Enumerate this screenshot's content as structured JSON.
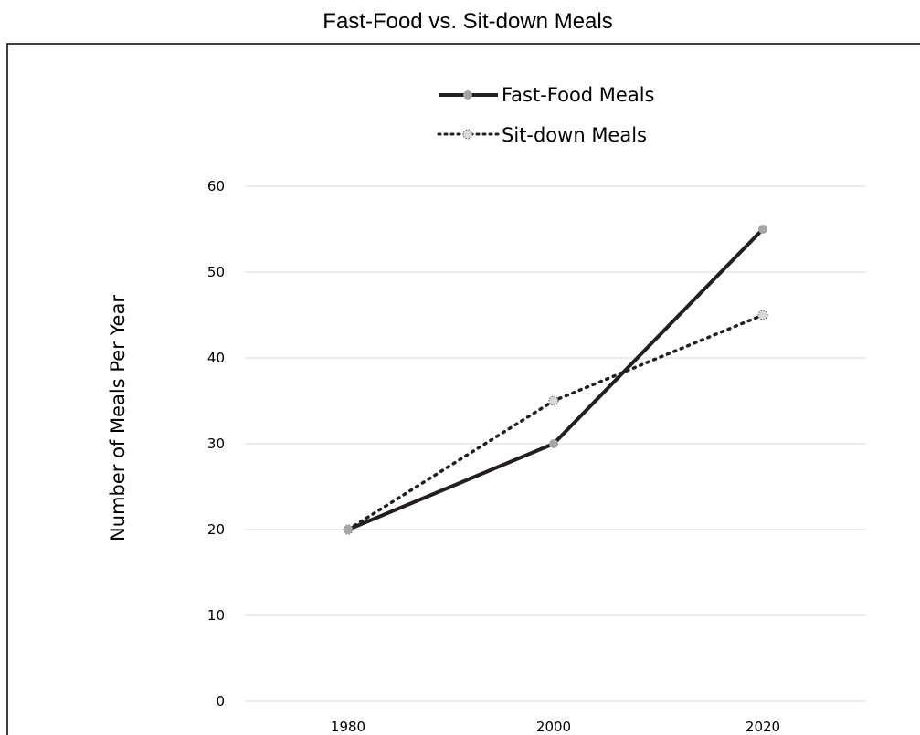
{
  "chart_data": {
    "type": "line",
    "title": "Fast-Food vs. Sit-down Meals",
    "xlabel": "",
    "ylabel": "Number of Meals Per Year",
    "categories": [
      "1980",
      "2000",
      "2020"
    ],
    "ylim": [
      0,
      60
    ],
    "yticks": [
      "0",
      "10",
      "20",
      "30",
      "40",
      "50",
      "60"
    ],
    "grid": true,
    "legend_position": "top",
    "series": [
      {
        "name": "Fast-Food Meals",
        "values": [
          20,
          30,
          55
        ],
        "line_style": "solid",
        "line_color": "#231f20",
        "marker_color": "#a6a6a6"
      },
      {
        "name": "Sit-down Meals",
        "values": [
          20,
          35,
          45
        ],
        "line_style": "dotted",
        "line_color": "#231f20",
        "marker_color": "#d9d9d9"
      }
    ]
  }
}
